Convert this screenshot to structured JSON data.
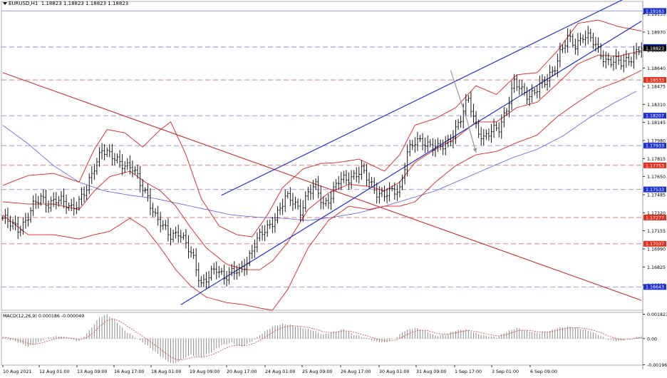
{
  "header": {
    "symbol": "EURUSD,H1",
    "ohlc": "1.18823 1.18823 1.18823 1.18823"
  },
  "macd": {
    "label": "MACD(12,26,9) 0.000186 -0.000049"
  },
  "colors": {
    "background": "#ffffff",
    "candle": "#000000",
    "bollinger": "#e21e1e",
    "ma": "#5a5ae6",
    "channel": "#1428d2",
    "downtrend": "#d12020",
    "resistance_level": "#8e8ee0",
    "support_level": "#d07070",
    "forecast_arrow": "#9a9a9a",
    "macd_hist": "#8c8c8c",
    "macd_signal": "#e04040",
    "label_blue": "#1a30d0",
    "label_red": "#e03020",
    "label_black": "#000000"
  },
  "chart_data": [
    {
      "type": "candlestick",
      "title": "EURUSD,H1",
      "ylim": [
        1.1643,
        1.1925
      ],
      "x_ticks": [
        "10 Aug 2021",
        "12 Aug 01:00",
        "13 Aug 09:00",
        "16 Aug 17:00",
        "18 Aug 01:00",
        "19 Aug 09:00",
        "20 Aug 17:00",
        "24 Aug 01:00",
        "25 Aug 09:00",
        "26 Aug 17:00",
        "30 Aug 01:00",
        "31 Aug 09:00",
        "1 Sep 17:00",
        "3 Sep 01:00",
        "6 Sep 09:00"
      ],
      "y_ticks": [
        "1.19135",
        "1.18970",
        "1.18805",
        "1.18640",
        "1.18475",
        "1.18310",
        "1.18145",
        "1.17980",
        "1.17815",
        "1.17650",
        "1.17485",
        "1.17320",
        "1.17155",
        "1.16990",
        "1.16825",
        "1.16660"
      ],
      "close_anchors": [
        [
          0,
          1.1727
        ],
        [
          3,
          1.1721
        ],
        [
          6,
          1.1718
        ],
        [
          9,
          1.1725
        ],
        [
          12,
          1.1737
        ],
        [
          15,
          1.1746
        ],
        [
          18,
          1.1741
        ],
        [
          21,
          1.1743
        ],
        [
          24,
          1.1741
        ],
        [
          27,
          1.1738
        ],
        [
          30,
          1.1742
        ],
        [
          33,
          1.1752
        ],
        [
          36,
          1.1775
        ],
        [
          39,
          1.1791
        ],
        [
          42,
          1.1783
        ],
        [
          45,
          1.178
        ],
        [
          48,
          1.1777
        ],
        [
          51,
          1.1772
        ],
        [
          54,
          1.1758
        ],
        [
          57,
          1.1748
        ],
        [
          60,
          1.1728
        ],
        [
          63,
          1.1718
        ],
        [
          66,
          1.1712
        ],
        [
          69,
          1.1715
        ],
        [
          72,
          1.1702
        ],
        [
          75,
          1.169
        ],
        [
          78,
          1.1668
        ],
        [
          81,
          1.1673
        ],
        [
          84,
          1.168
        ],
        [
          87,
          1.1675
        ],
        [
          90,
          1.1678
        ],
        [
          93,
          1.1677
        ],
        [
          96,
          1.1688
        ],
        [
          99,
          1.1705
        ],
        [
          102,
          1.1712
        ],
        [
          105,
          1.172
        ],
        [
          108,
          1.1733
        ],
        [
          111,
          1.1745
        ],
        [
          114,
          1.1742
        ],
        [
          117,
          1.1735
        ],
        [
          120,
          1.175
        ],
        [
          123,
          1.1755
        ],
        [
          126,
          1.174
        ],
        [
          129,
          1.1748
        ],
        [
          132,
          1.176
        ],
        [
          135,
          1.1763
        ],
        [
          138,
          1.1767
        ],
        [
          141,
          1.177
        ],
        [
          144,
          1.176
        ],
        [
          147,
          1.1752
        ],
        [
          150,
          1.1748
        ],
        [
          153,
          1.175
        ],
        [
          156,
          1.1754
        ],
        [
          159,
          1.1788
        ],
        [
          162,
          1.1795
        ],
        [
          165,
          1.1797
        ],
        [
          168,
          1.1795
        ],
        [
          171,
          1.179
        ],
        [
          174,
          1.1793
        ],
        [
          177,
          1.1805
        ],
        [
          180,
          1.1818
        ],
        [
          183,
          1.1835
        ],
        [
          186,
          1.1812
        ],
        [
          189,
          1.18
        ],
        [
          192,
          1.1805
        ],
        [
          195,
          1.181
        ],
        [
          198,
          1.1828
        ],
        [
          201,
          1.185
        ],
        [
          204,
          1.1843
        ],
        [
          207,
          1.184
        ],
        [
          210,
          1.1845
        ],
        [
          213,
          1.185
        ],
        [
          216,
          1.1862
        ],
        [
          219,
          1.1878
        ],
        [
          222,
          1.189
        ],
        [
          225,
          1.1885
        ],
        [
          228,
          1.1895
        ],
        [
          231,
          1.189
        ],
        [
          234,
          1.188
        ],
        [
          237,
          1.1872
        ],
        [
          240,
          1.187
        ],
        [
          243,
          1.1868
        ],
        [
          246,
          1.1873
        ],
        [
          249,
          1.1879
        ],
        [
          251,
          1.1882
        ]
      ],
      "bollinger_upper": [
        [
          0,
          1.1757
        ],
        [
          10,
          1.1766
        ],
        [
          20,
          1.1768
        ],
        [
          30,
          1.176
        ],
        [
          36,
          1.179
        ],
        [
          41,
          1.1808
        ],
        [
          48,
          1.1805
        ],
        [
          55,
          1.1792
        ],
        [
          62,
          1.1808
        ],
        [
          66,
          1.1815
        ],
        [
          72,
          1.1785
        ],
        [
          78,
          1.1745
        ],
        [
          85,
          1.172
        ],
        [
          92,
          1.1712
        ],
        [
          98,
          1.171
        ],
        [
          104,
          1.173
        ],
        [
          110,
          1.1755
        ],
        [
          118,
          1.1772
        ],
        [
          125,
          1.1777
        ],
        [
          132,
          1.1778
        ],
        [
          140,
          1.1781
        ],
        [
          150,
          1.177
        ],
        [
          156,
          1.1785
        ],
        [
          162,
          1.1812
        ],
        [
          170,
          1.1818
        ],
        [
          178,
          1.1828
        ],
        [
          186,
          1.1848
        ],
        [
          194,
          1.184
        ],
        [
          202,
          1.1858
        ],
        [
          210,
          1.186
        ],
        [
          218,
          1.188
        ],
        [
          226,
          1.1905
        ],
        [
          234,
          1.1908
        ],
        [
          242,
          1.1902
        ],
        [
          251,
          1.1898
        ]
      ],
      "bollinger_lower": [
        [
          0,
          1.173
        ],
        [
          10,
          1.1712
        ],
        [
          20,
          1.1712
        ],
        [
          30,
          1.1708
        ],
        [
          36,
          1.1712
        ],
        [
          42,
          1.1715
        ],
        [
          50,
          1.1727
        ],
        [
          56,
          1.1718
        ],
        [
          62,
          1.17
        ],
        [
          68,
          1.168
        ],
        [
          74,
          1.1665
        ],
        [
          80,
          1.1655
        ],
        [
          88,
          1.165
        ],
        [
          95,
          1.1648
        ],
        [
          101,
          1.1645
        ],
        [
          106,
          1.1643
        ],
        [
          112,
          1.1662
        ],
        [
          120,
          1.17
        ],
        [
          128,
          1.1725
        ],
        [
          136,
          1.1738
        ],
        [
          144,
          1.1735
        ],
        [
          150,
          1.1738
        ],
        [
          156,
          1.1738
        ],
        [
          162,
          1.1742
        ],
        [
          170,
          1.176
        ],
        [
          178,
          1.1775
        ],
        [
          186,
          1.1785
        ],
        [
          194,
          1.1788
        ],
        [
          202,
          1.1796
        ],
        [
          210,
          1.1803
        ],
        [
          218,
          1.182
        ],
        [
          226,
          1.1833
        ],
        [
          234,
          1.1845
        ],
        [
          242,
          1.1852
        ],
        [
          251,
          1.1862
        ]
      ],
      "bollinger_middle": [
        [
          0,
          1.1742
        ],
        [
          10,
          1.174
        ],
        [
          20,
          1.174
        ],
        [
          30,
          1.1735
        ],
        [
          36,
          1.1752
        ],
        [
          42,
          1.1765
        ],
        [
          50,
          1.177
        ],
        [
          56,
          1.176
        ],
        [
          62,
          1.1752
        ],
        [
          68,
          1.1738
        ],
        [
          74,
          1.1718
        ],
        [
          80,
          1.17
        ],
        [
          88,
          1.1685
        ],
        [
          95,
          1.168
        ],
        [
          101,
          1.168
        ],
        [
          106,
          1.1688
        ],
        [
          112,
          1.1705
        ],
        [
          120,
          1.1735
        ],
        [
          128,
          1.175
        ],
        [
          136,
          1.1758
        ],
        [
          144,
          1.1756
        ],
        [
          150,
          1.1752
        ],
        [
          156,
          1.176
        ],
        [
          162,
          1.1778
        ],
        [
          170,
          1.179
        ],
        [
          178,
          1.18
        ],
        [
          186,
          1.1815
        ],
        [
          194,
          1.1815
        ],
        [
          202,
          1.1828
        ],
        [
          210,
          1.1833
        ],
        [
          218,
          1.185
        ],
        [
          226,
          1.1868
        ],
        [
          234,
          1.1876
        ],
        [
          242,
          1.1875
        ],
        [
          251,
          1.188
        ]
      ],
      "moving_average": [
        [
          0,
          1.1812
        ],
        [
          10,
          1.1795
        ],
        [
          20,
          1.1775
        ],
        [
          30,
          1.176
        ],
        [
          40,
          1.1752
        ],
        [
          50,
          1.1748
        ],
        [
          60,
          1.1745
        ],
        [
          70,
          1.174
        ],
        [
          80,
          1.1735
        ],
        [
          90,
          1.173
        ],
        [
          100,
          1.1728
        ],
        [
          110,
          1.1727
        ],
        [
          120,
          1.1725
        ],
        [
          130,
          1.1728
        ],
        [
          140,
          1.1732
        ],
        [
          150,
          1.1738
        ],
        [
          160,
          1.1745
        ],
        [
          170,
          1.1752
        ],
        [
          180,
          1.1762
        ],
        [
          190,
          1.1772
        ],
        [
          200,
          1.1782
        ],
        [
          210,
          1.179
        ],
        [
          220,
          1.1802
        ],
        [
          230,
          1.1818
        ],
        [
          240,
          1.1832
        ],
        [
          249,
          1.1843
        ]
      ],
      "channel_upper": [
        [
          86,
          1.1748
        ],
        [
          251,
          1.1935
        ]
      ],
      "channel_lower": [
        [
          70,
          1.1648
        ],
        [
          251,
          1.1907
        ]
      ],
      "downtrend_line": [
        [
          0,
          1.186
        ],
        [
          251,
          1.1652
        ]
      ],
      "forecast_arrow": [
        [
          176,
          1.1862
        ],
        [
          182,
          1.182
        ],
        [
          186,
          1.1787
        ]
      ],
      "horizontal_levels": [
        {
          "label": "1.19163",
          "value": 1.19163,
          "style": "solid-blue"
        },
        {
          "label": "1.18834",
          "value": 1.18834,
          "style": "dashed-blue"
        },
        {
          "label": "1.18533",
          "value": 1.18533,
          "style": "dashed-red"
        },
        {
          "label": "1.18207",
          "value": 1.18207,
          "style": "dashed-blue"
        },
        {
          "label": "1.17933",
          "value": 1.17933,
          "style": "dashed-blue"
        },
        {
          "label": "1.17753",
          "value": 1.17753,
          "style": "dashed-red"
        },
        {
          "label": "1.17533",
          "value": 1.17533,
          "style": "dashed-blue"
        },
        {
          "label": "1.17277",
          "value": 1.17277,
          "style": "dashed-red"
        },
        {
          "label": "1.17037",
          "value": 1.17037,
          "style": "dashed-red"
        },
        {
          "label": "1.16643",
          "value": 1.16643,
          "style": "dashed-blue"
        }
      ],
      "price_tag": {
        "label": "1.18823",
        "value": 1.18823
      }
    },
    {
      "type": "bar",
      "title": "MACD(12,26,9) 0.000186 -0.000049",
      "ylim": [
        -0.00198,
        0.00196
      ],
      "y_ticks": [
        "0.001823",
        "0.00",
        "-0.00196"
      ],
      "histogram_anchors": [
        [
          0,
          0.0001
        ],
        [
          5,
          -0.0002
        ],
        [
          10,
          -0.0006
        ],
        [
          14,
          -0.0003
        ],
        [
          18,
          0.0001
        ],
        [
          22,
          0.0002
        ],
        [
          26,
          0.0
        ],
        [
          30,
          -0.0002
        ],
        [
          34,
          0.0006
        ],
        [
          38,
          0.0016
        ],
        [
          41,
          0.0018
        ],
        [
          44,
          0.0014
        ],
        [
          48,
          0.0006
        ],
        [
          52,
          0.0001
        ],
        [
          56,
          -0.0004
        ],
        [
          60,
          -0.001
        ],
        [
          64,
          -0.0016
        ],
        [
          67,
          -0.0019
        ],
        [
          70,
          -0.0016
        ],
        [
          74,
          -0.0012
        ],
        [
          78,
          -0.0014
        ],
        [
          82,
          -0.001
        ],
        [
          86,
          -0.0005
        ],
        [
          90,
          -0.0003
        ],
        [
          94,
          -0.0006
        ],
        [
          98,
          -0.0002
        ],
        [
          102,
          0.0004
        ],
        [
          106,
          0.0009
        ],
        [
          110,
          0.0011
        ],
        [
          114,
          0.001
        ],
        [
          118,
          0.0008
        ],
        [
          122,
          0.0006
        ],
        [
          126,
          0.0003
        ],
        [
          130,
          0.0005
        ],
        [
          134,
          0.0007
        ],
        [
          138,
          0.0003
        ],
        [
          142,
          0.0001
        ],
        [
          146,
          -0.0002
        ],
        [
          150,
          -0.0003
        ],
        [
          154,
          0.0
        ],
        [
          158,
          0.0006
        ],
        [
          162,
          0.0008
        ],
        [
          166,
          0.0006
        ],
        [
          170,
          0.0002
        ],
        [
          174,
          0.0003
        ],
        [
          178,
          0.0006
        ],
        [
          182,
          0.0007
        ],
        [
          186,
          0.0004
        ],
        [
          190,
          0.0002
        ],
        [
          194,
          0.0001
        ],
        [
          198,
          0.0005
        ],
        [
          202,
          0.0008
        ],
        [
          206,
          0.0006
        ],
        [
          210,
          0.0004
        ],
        [
          214,
          0.0005
        ],
        [
          218,
          0.0008
        ],
        [
          222,
          0.0009
        ],
        [
          226,
          0.0008
        ],
        [
          230,
          0.0006
        ],
        [
          234,
          0.0003
        ],
        [
          238,
          -0.0001
        ],
        [
          242,
          -0.0002
        ],
        [
          246,
          0.0
        ],
        [
          251,
          0.0002
        ]
      ]
    }
  ]
}
